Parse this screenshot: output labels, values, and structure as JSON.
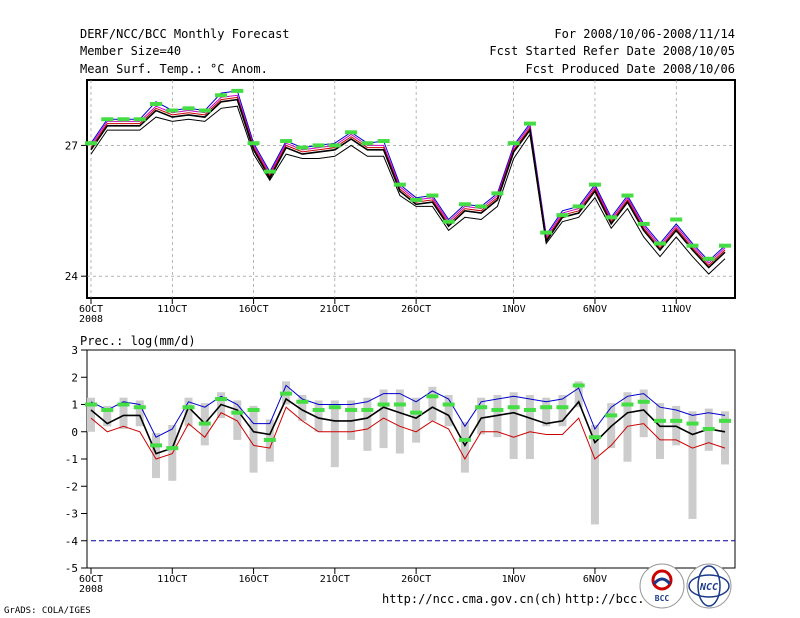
{
  "header": {
    "title": "DERF/NCC/BCC Monthly Forecast",
    "member_size": "Member Size=40",
    "variable": "Mean Surf. Temp.: °C Anom.",
    "period": "For 2008/10/06-2008/11/14",
    "started": "Fcst Started Refer Date 2008/10/05",
    "produced": "Fcst Produced Date 2008/10/06"
  },
  "footer": {
    "credit": "GrADS: COLA/IGES",
    "url1": "http://ncc.cma.gov.cn(ch)",
    "url2": "http://bcc.",
    "logo_bcc": "BCC",
    "logo_ncc": "NCC"
  },
  "colors": {
    "member_blue": "#0000cc",
    "member_red": "#cc0000",
    "member_magenta": "#cc00cc",
    "ensemble_mean": "#000000",
    "observed_marker": "#44dd44",
    "spread_bar": "#cccccc",
    "reference_line": "#0000aa"
  },
  "chart_data": [
    {
      "type": "line",
      "title": "Mean Surf. Temp.: °C Anom.",
      "x_ticks": [
        "6OCT",
        "11OCT",
        "16OCT",
        "21OCT",
        "26OCT",
        "1NOV",
        "6NOV",
        "11NOV"
      ],
      "x_tick_days": [
        0,
        5,
        10,
        15,
        20,
        26,
        31,
        36
      ],
      "x_sublabel": "2008",
      "y_ticks": [
        "24",
        "27"
      ],
      "y_tick_values": [
        24,
        27
      ],
      "ylim": [
        23.5,
        28.5
      ],
      "x": [
        0,
        1,
        2,
        3,
        4,
        5,
        6,
        7,
        8,
        9,
        10,
        11,
        12,
        13,
        14,
        15,
        16,
        17,
        18,
        19,
        20,
        21,
        22,
        23,
        24,
        25,
        26,
        27,
        28,
        29,
        30,
        31,
        32,
        33,
        34,
        35,
        36,
        37,
        38,
        39
      ],
      "series": [
        {
          "name": "upper",
          "color": "#0000cc",
          "values": [
            27.05,
            27.6,
            27.6,
            27.6,
            28.0,
            27.8,
            27.85,
            27.8,
            28.2,
            28.25,
            27.05,
            26.4,
            27.1,
            26.95,
            27.0,
            27.05,
            27.3,
            27.05,
            27.1,
            26.1,
            25.8,
            25.85,
            25.3,
            25.65,
            25.6,
            25.9,
            27.0,
            27.5,
            24.95,
            25.5,
            25.6,
            26.1,
            25.35,
            25.85,
            25.2,
            24.75,
            25.2,
            24.75,
            24.35,
            24.7
          ]
        },
        {
          "name": "magenta",
          "color": "#cc00cc",
          "values": [
            27.0,
            27.55,
            27.55,
            27.55,
            27.9,
            27.75,
            27.8,
            27.75,
            28.1,
            28.15,
            27.0,
            26.35,
            27.05,
            26.9,
            26.95,
            27.0,
            27.25,
            27.0,
            27.0,
            26.05,
            25.75,
            25.8,
            25.25,
            25.6,
            25.55,
            25.85,
            26.95,
            27.45,
            24.9,
            25.45,
            25.55,
            26.05,
            25.3,
            25.8,
            25.15,
            24.7,
            25.15,
            24.7,
            24.3,
            24.65
          ]
        },
        {
          "name": "red",
          "color": "#cc0000",
          "values": [
            26.95,
            27.5,
            27.5,
            27.5,
            27.85,
            27.7,
            27.75,
            27.7,
            28.05,
            28.1,
            26.95,
            26.3,
            27.0,
            26.85,
            26.9,
            26.95,
            27.2,
            26.95,
            26.95,
            26.0,
            25.7,
            25.75,
            25.2,
            25.55,
            25.5,
            25.8,
            26.9,
            27.4,
            24.85,
            25.4,
            25.5,
            26.0,
            25.25,
            25.75,
            25.1,
            24.65,
            25.1,
            24.65,
            24.25,
            24.6
          ]
        },
        {
          "name": "mean",
          "color": "#000000",
          "values": [
            26.9,
            27.45,
            27.45,
            27.45,
            27.8,
            27.65,
            27.7,
            27.65,
            28.0,
            28.05,
            26.9,
            26.25,
            26.95,
            26.8,
            26.85,
            26.9,
            27.15,
            26.9,
            26.9,
            25.95,
            25.65,
            25.7,
            25.15,
            25.5,
            25.45,
            25.75,
            26.85,
            27.35,
            24.8,
            25.35,
            25.45,
            25.95,
            25.2,
            25.7,
            25.05,
            24.6,
            25.05,
            24.6,
            24.2,
            24.55
          ]
        },
        {
          "name": "lower",
          "color": "#000000",
          "values": [
            26.8,
            27.35,
            27.35,
            27.35,
            27.65,
            27.55,
            27.6,
            27.55,
            27.85,
            27.9,
            26.8,
            26.2,
            26.8,
            26.7,
            26.7,
            26.75,
            27.0,
            26.75,
            26.75,
            25.85,
            25.6,
            25.6,
            25.05,
            25.35,
            25.3,
            25.6,
            26.7,
            27.25,
            24.75,
            25.25,
            25.35,
            25.8,
            25.1,
            25.55,
            24.9,
            24.45,
            24.9,
            24.45,
            24.05,
            24.4
          ]
        }
      ],
      "observed": [
        27.05,
        27.6,
        27.6,
        27.6,
        27.95,
        27.8,
        27.85,
        27.8,
        28.15,
        28.25,
        27.05,
        26.4,
        27.1,
        26.95,
        27.0,
        27.0,
        27.3,
        27.05,
        27.1,
        26.1,
        25.75,
        25.85,
        25.25,
        25.65,
        25.6,
        25.9,
        27.05,
        27.5,
        25.0,
        25.4,
        25.6,
        26.1,
        25.35,
        25.85,
        25.2,
        24.75,
        25.3,
        24.7,
        24.4,
        24.7
      ]
    },
    {
      "type": "line",
      "title": "Prec.: log(mm/d)",
      "x_ticks": [
        "6OCT",
        "11OCT",
        "16OCT",
        "21OCT",
        "26OCT",
        "1NOV",
        "6NOV"
      ],
      "x_tick_days": [
        0,
        5,
        10,
        15,
        20,
        26,
        31
      ],
      "x_sublabel": "2008",
      "y_ticks": [
        "3",
        "2",
        "1",
        "0",
        "-1",
        "-2",
        "-3",
        "-4",
        "-5"
      ],
      "y_tick_values": [
        3,
        2,
        1,
        0,
        -1,
        -2,
        -3,
        -4,
        -5
      ],
      "ylim": [
        -5,
        3
      ],
      "reference_level": -4,
      "x": [
        0,
        1,
        2,
        3,
        4,
        5,
        6,
        7,
        8,
        9,
        10,
        11,
        12,
        13,
        14,
        15,
        16,
        17,
        18,
        19,
        20,
        21,
        22,
        23,
        24,
        25,
        26,
        27,
        28,
        29,
        30,
        31,
        32,
        33,
        34,
        35,
        36,
        37,
        38,
        39
      ],
      "series": [
        {
          "name": "upper",
          "color": "#0000cc",
          "values": [
            1.1,
            0.8,
            1.1,
            1.0,
            -0.2,
            0.1,
            1.1,
            0.9,
            1.3,
            1.0,
            0.3,
            0.3,
            1.7,
            1.2,
            1.0,
            1.0,
            1.0,
            1.1,
            1.4,
            1.4,
            1.1,
            1.5,
            1.2,
            0.2,
            1.1,
            1.2,
            1.3,
            1.2,
            1.1,
            1.2,
            1.6,
            0.1,
            0.9,
            1.3,
            1.4,
            0.9,
            0.8,
            0.6,
            0.7,
            0.6
          ]
        },
        {
          "name": "mean",
          "color": "#000000",
          "values": [
            0.8,
            0.3,
            0.6,
            0.6,
            -0.8,
            -0.6,
            0.9,
            0.3,
            1.0,
            0.8,
            0.0,
            -0.1,
            1.2,
            0.8,
            0.5,
            0.4,
            0.4,
            0.5,
            0.9,
            0.7,
            0.5,
            0.9,
            0.6,
            -0.5,
            0.5,
            0.6,
            0.7,
            0.5,
            0.3,
            0.4,
            1.1,
            -0.4,
            0.2,
            0.7,
            0.8,
            0.2,
            0.2,
            -0.1,
            0.1,
            0.0
          ]
        },
        {
          "name": "lower",
          "color": "#cc0000",
          "values": [
            0.5,
            0.0,
            0.2,
            0.0,
            -1.0,
            -0.8,
            0.3,
            -0.2,
            0.7,
            0.4,
            -0.5,
            -0.6,
            0.9,
            0.4,
            0.0,
            0.0,
            0.0,
            0.1,
            0.5,
            0.2,
            0.0,
            0.4,
            0.1,
            -1.0,
            0.0,
            0.0,
            -0.2,
            0.0,
            -0.1,
            -0.1,
            0.5,
            -1.0,
            -0.5,
            0.2,
            0.3,
            -0.3,
            -0.3,
            -0.6,
            -0.4,
            -0.6
          ]
        }
      ],
      "observed": [
        1.0,
        0.8,
        1.0,
        0.9,
        -0.5,
        -0.6,
        0.9,
        0.3,
        1.2,
        0.7,
        0.8,
        -0.3,
        1.4,
        1.1,
        0.8,
        0.9,
        0.8,
        0.8,
        1.0,
        1.0,
        0.7,
        1.3,
        1.0,
        -0.3,
        0.9,
        0.8,
        0.9,
        0.8,
        0.9,
        0.9,
        1.7,
        -0.2,
        0.6,
        1.0,
        1.1,
        0.4,
        0.4,
        0.3,
        0.1,
        0.4
      ],
      "spread_min": [
        0.0,
        0.2,
        0.1,
        0.2,
        -1.7,
        -1.8,
        0.2,
        -0.5,
        0.5,
        -0.3,
        -1.5,
        -1.1,
        1.0,
        0.4,
        0.0,
        -1.3,
        -0.3,
        -0.7,
        -0.6,
        -0.8,
        -0.4,
        0.4,
        0.2,
        -1.5,
        -0.1,
        -0.2,
        -1.0,
        -1.0,
        0.2,
        0.2,
        0.9,
        -3.4,
        -0.6,
        -1.1,
        -0.2,
        -1.0,
        -0.5,
        -3.2,
        -0.7,
        -1.2
      ]
    }
  ]
}
